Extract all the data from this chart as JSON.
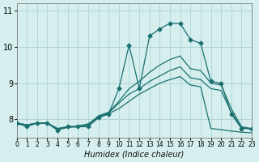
{
  "xlabel": "Humidex (Indice chaleur)",
  "ylabel": "",
  "background_color": "#d6eeee",
  "grid_color": "#b0d8d8",
  "red_grid_color": "#e87070",
  "line_color": "#1a7070",
  "xlim": [
    0,
    23
  ],
  "ylim": [
    7.5,
    11.2
  ],
  "x_ticks": [
    0,
    1,
    2,
    3,
    4,
    5,
    6,
    7,
    8,
    9,
    10,
    11,
    12,
    13,
    14,
    15,
    16,
    17,
    18,
    19,
    20,
    21,
    22,
    23
  ],
  "y_ticks": [
    8,
    9,
    10,
    11
  ],
  "series": [
    {
      "x": [
        0,
        1,
        2,
        3,
        4,
        5,
        6,
        7,
        8,
        9,
        10,
        11,
        12,
        13,
        14,
        15,
        16,
        17,
        18,
        19,
        20,
        21,
        22,
        23
      ],
      "y": [
        7.9,
        7.8,
        7.9,
        7.9,
        7.7,
        7.8,
        7.8,
        7.8,
        8.05,
        8.15,
        8.85,
        10.05,
        8.85,
        10.3,
        10.5,
        10.65,
        10.65,
        10.2,
        10.1,
        9.05,
        9.0,
        8.15,
        7.75,
        7.75
      ],
      "marker": "D",
      "markersize": 2.5
    },
    {
      "x": [
        0,
        1,
        2,
        3,
        4,
        5,
        6,
        7,
        8,
        9,
        10,
        11,
        12,
        13,
        14,
        15,
        16,
        17,
        18,
        19,
        20,
        21,
        22,
        23
      ],
      "y": [
        7.9,
        7.85,
        7.9,
        7.9,
        7.75,
        7.8,
        7.8,
        7.85,
        8.1,
        8.2,
        8.5,
        8.85,
        9.05,
        9.3,
        9.5,
        9.65,
        9.75,
        9.4,
        9.35,
        9.0,
        8.95,
        8.3,
        7.8,
        7.75
      ],
      "marker": null,
      "markersize": 0
    },
    {
      "x": [
        0,
        1,
        2,
        3,
        4,
        5,
        6,
        7,
        8,
        9,
        10,
        11,
        12,
        13,
        14,
        15,
        16,
        17,
        18,
        19,
        20,
        21,
        22,
        23
      ],
      "y": [
        7.9,
        7.85,
        7.9,
        7.9,
        7.75,
        7.8,
        7.82,
        7.88,
        8.08,
        8.18,
        8.45,
        8.7,
        8.85,
        9.05,
        9.2,
        9.35,
        9.45,
        9.15,
        9.1,
        8.85,
        8.8,
        8.2,
        7.78,
        7.73
      ],
      "marker": null,
      "markersize": 0
    },
    {
      "x": [
        0,
        1,
        2,
        3,
        4,
        5,
        6,
        7,
        8,
        9,
        10,
        11,
        12,
        13,
        14,
        15,
        16,
        17,
        18,
        19,
        20,
        21,
        22,
        23
      ],
      "y": [
        7.9,
        7.85,
        7.9,
        7.9,
        7.72,
        7.78,
        7.8,
        7.85,
        8.06,
        8.16,
        8.3,
        8.5,
        8.7,
        8.85,
        9.0,
        9.1,
        9.18,
        8.95,
        8.9,
        7.75,
        7.72,
        7.68,
        7.65,
        7.63
      ],
      "marker": null,
      "markersize": 0
    }
  ]
}
